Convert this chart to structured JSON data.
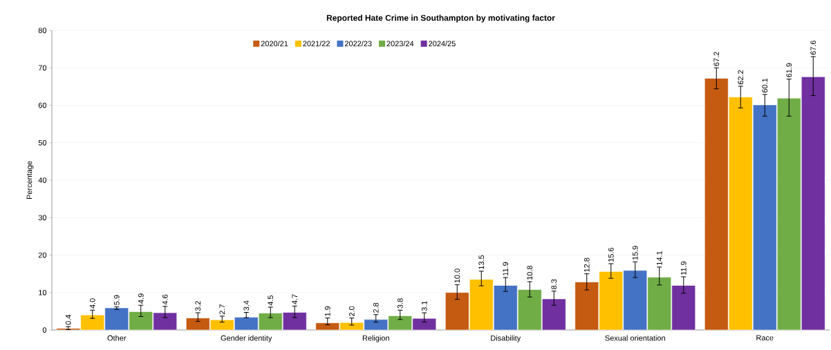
{
  "chart_data": {
    "type": "bar",
    "title": "Reported Hate Crime in Southampton by motivating factor",
    "ylabel": "Percentage",
    "categories": [
      "Other",
      "Gender identity",
      "Religion",
      "Disability",
      "Sexual orientation",
      "Race"
    ],
    "ylim": [
      0,
      80
    ],
    "yticks": [
      0,
      10,
      20,
      30,
      40,
      50,
      60,
      70,
      80
    ],
    "grid": "y",
    "legend": "top",
    "series": [
      {
        "name": "2020/21",
        "color": "#c55a11",
        "values": [
          0.4,
          3.2,
          1.9,
          10.0,
          12.8,
          67.2
        ],
        "value_labels": [
          "0.4",
          "3.2",
          "1.9",
          "10.0",
          "12.8",
          "67.2"
        ],
        "errors": [
          [
            0.1,
            0.9
          ],
          [
            2.3,
            4.6
          ],
          [
            1.4,
            3.2
          ],
          [
            8.2,
            12.1
          ],
          [
            10.7,
            15.0
          ],
          [
            64.4,
            70.0
          ]
        ]
      },
      {
        "name": "2021/22",
        "color": "#ffc000",
        "values": [
          4.0,
          2.7,
          2.0,
          13.5,
          15.6,
          62.2
        ],
        "value_labels": [
          "4.0",
          "2.7",
          "2.0",
          "13.5",
          "15.6",
          "62.2"
        ],
        "errors": [
          [
            3.1,
            5.3
          ],
          [
            2.1,
            3.7
          ],
          [
            1.3,
            3.2
          ],
          [
            11.8,
            15.7
          ],
          [
            13.8,
            17.7
          ],
          [
            59.3,
            65.1
          ]
        ]
      },
      {
        "name": "2022/23",
        "color": "#4472c4",
        "values": [
          5.9,
          3.4,
          2.8,
          11.9,
          15.9,
          60.1
        ],
        "value_labels": [
          "5.9",
          "3.4",
          "2.8",
          "11.9",
          "15.9",
          "60.1"
        ],
        "errors": [
          [
            5.5,
            6.2
          ],
          [
            3.3,
            4.7
          ],
          [
            2.1,
            4.1
          ],
          [
            10.3,
            14.0
          ],
          [
            14.0,
            18.2
          ],
          [
            57.1,
            62.9
          ]
        ]
      },
      {
        "name": "2023/24",
        "color": "#70ad47",
        "values": [
          4.9,
          4.5,
          3.8,
          10.8,
          14.1,
          61.9
        ],
        "value_labels": [
          "4.9",
          "4.5",
          "3.8",
          "10.8",
          "14.1",
          "61.9"
        ],
        "errors": [
          [
            3.6,
            6.6
          ],
          [
            3.3,
            6.1
          ],
          [
            2.8,
            5.3
          ],
          [
            8.8,
            12.9
          ],
          [
            12.0,
            16.8
          ],
          [
            57.1,
            67.0
          ]
        ]
      },
      {
        "name": "2024/25",
        "color": "#7030a0",
        "values": [
          4.6,
          4.7,
          3.1,
          8.3,
          11.9,
          67.6
        ],
        "value_labels": [
          "4.6",
          "4.7",
          "3.1",
          "8.3",
          "11.9",
          "67.6"
        ],
        "errors": [
          [
            3.3,
            6.3
          ],
          [
            3.3,
            6.4
          ],
          [
            2.1,
            4.6
          ],
          [
            6.6,
            10.4
          ],
          [
            9.8,
            14.2
          ],
          [
            62.6,
            73.0
          ]
        ]
      }
    ]
  }
}
